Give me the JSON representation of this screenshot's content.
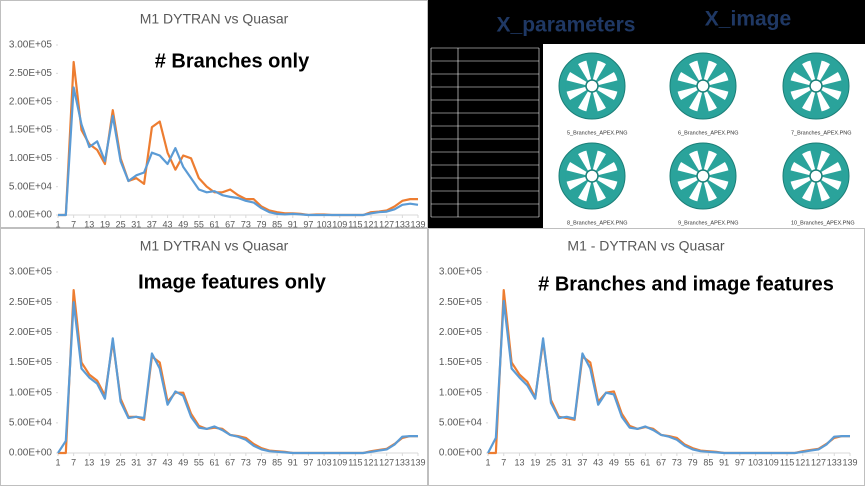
{
  "chart_data": [
    {
      "type": "line",
      "title": "M1 DYTRAN vs Quasar",
      "annotation": "# Branches only",
      "x": [
        1,
        4,
        7,
        10,
        13,
        16,
        19,
        22,
        25,
        28,
        31,
        34,
        37,
        40,
        43,
        46,
        49,
        52,
        55,
        58,
        61,
        64,
        67,
        70,
        73,
        76,
        79,
        82,
        85,
        88,
        91,
        94,
        97,
        100,
        103,
        106,
        109,
        112,
        115,
        118,
        121,
        124,
        127,
        130,
        133,
        136,
        139
      ],
      "xlim": [
        1,
        139
      ],
      "xticks": [
        1,
        7,
        13,
        19,
        25,
        31,
        37,
        43,
        49,
        55,
        61,
        67,
        73,
        79,
        85,
        91,
        97,
        103,
        109,
        115,
        121,
        127,
        133,
        139
      ],
      "ylim": [
        0,
        300000
      ],
      "yticks": [
        {
          "value": 0,
          "label": "0.00E+00"
        },
        {
          "value": 50000,
          "label": "5.00E+04"
        },
        {
          "value": 100000,
          "label": "1.00E+05"
        },
        {
          "value": 150000,
          "label": "1.50E+05"
        },
        {
          "value": 200000,
          "label": "2.00E+05"
        },
        {
          "value": 250000,
          "label": "2.50E+05"
        },
        {
          "value": 300000,
          "label": "3.00E+05"
        }
      ],
      "series": [
        {
          "color": "#ed7d31",
          "values": [
            0,
            0,
            270000,
            150000,
            125000,
            115000,
            90000,
            185000,
            100000,
            60000,
            65000,
            55000,
            155000,
            165000,
            110000,
            80000,
            105000,
            100000,
            65000,
            50000,
            40000,
            40000,
            45000,
            35000,
            28000,
            28000,
            15000,
            8000,
            5000,
            3000,
            3000,
            2000,
            0,
            1000,
            1000,
            0,
            0,
            0,
            0,
            0,
            5000,
            6000,
            8000,
            15000,
            25000,
            28000,
            28000
          ]
        },
        {
          "color": "#5b9bd5",
          "values": [
            0,
            0,
            225000,
            160000,
            120000,
            130000,
            95000,
            175000,
            95000,
            60000,
            70000,
            75000,
            110000,
            105000,
            90000,
            118000,
            85000,
            65000,
            45000,
            40000,
            42000,
            35000,
            32000,
            30000,
            25000,
            22000,
            12000,
            5000,
            2000,
            1000,
            2000,
            1000,
            0,
            0,
            0,
            0,
            0,
            0,
            0,
            0,
            3000,
            5000,
            6000,
            10000,
            18000,
            20000,
            18000
          ]
        }
      ]
    },
    {
      "type": "line",
      "title": "M1 DYTRAN vs Quasar",
      "annotation": "Image features only",
      "x": [
        1,
        4,
        7,
        10,
        13,
        16,
        19,
        22,
        25,
        28,
        31,
        34,
        37,
        40,
        43,
        46,
        49,
        52,
        55,
        58,
        61,
        64,
        67,
        70,
        73,
        76,
        79,
        82,
        85,
        88,
        91,
        94,
        97,
        100,
        103,
        106,
        109,
        112,
        115,
        118,
        121,
        124,
        127,
        130,
        133,
        136,
        139
      ],
      "xlim": [
        1,
        139
      ],
      "xticks": [
        1,
        7,
        13,
        19,
        25,
        31,
        37,
        43,
        49,
        55,
        61,
        67,
        73,
        79,
        85,
        91,
        97,
        103,
        109,
        115,
        121,
        127,
        133,
        139
      ],
      "ylim": [
        0,
        300000
      ],
      "yticks": [
        {
          "value": 0,
          "label": "0.00E+00"
        },
        {
          "value": 50000,
          "label": "5.00E+04"
        },
        {
          "value": 100000,
          "label": "1.00E+05"
        },
        {
          "value": 150000,
          "label": "1.50E+05"
        },
        {
          "value": 200000,
          "label": "2.00E+05"
        },
        {
          "value": 250000,
          "label": "2.50E+05"
        },
        {
          "value": 300000,
          "label": "3.00E+05"
        }
      ],
      "series": [
        {
          "color": "#ed7d31",
          "values": [
            0,
            0,
            270000,
            150000,
            130000,
            120000,
            95000,
            185000,
            90000,
            60000,
            60000,
            55000,
            160000,
            150000,
            85000,
            100000,
            100000,
            65000,
            45000,
            40000,
            42000,
            40000,
            30000,
            28000,
            25000,
            15000,
            8000,
            4000,
            3000,
            2000,
            0,
            0,
            0,
            0,
            0,
            0,
            0,
            0,
            0,
            0,
            3000,
            5000,
            7000,
            15000,
            25000,
            28000,
            28000
          ]
        },
        {
          "color": "#5b9bd5",
          "values": [
            0,
            20000,
            250000,
            140000,
            125000,
            115000,
            90000,
            190000,
            85000,
            58000,
            60000,
            58000,
            165000,
            140000,
            80000,
            102000,
            95000,
            60000,
            42000,
            40000,
            44000,
            38000,
            30000,
            27000,
            22000,
            12000,
            6000,
            3000,
            2000,
            1000,
            0,
            0,
            0,
            0,
            0,
            0,
            0,
            0,
            0,
            0,
            2000,
            4000,
            6000,
            14000,
            27000,
            28000,
            28000
          ]
        }
      ]
    },
    {
      "type": "line",
      "title": "M1 - DYTRAN vs Quasar",
      "annotation": "# Branches and image features",
      "x": [
        1,
        4,
        7,
        10,
        13,
        16,
        19,
        22,
        25,
        28,
        31,
        34,
        37,
        40,
        43,
        46,
        49,
        52,
        55,
        58,
        61,
        64,
        67,
        70,
        73,
        76,
        79,
        82,
        85,
        88,
        91,
        94,
        97,
        100,
        103,
        106,
        109,
        112,
        115,
        118,
        121,
        124,
        127,
        130,
        133,
        136,
        139
      ],
      "xlim": [
        1,
        139
      ],
      "xticks": [
        1,
        7,
        13,
        19,
        25,
        31,
        37,
        43,
        49,
        55,
        61,
        67,
        73,
        79,
        85,
        91,
        97,
        103,
        109,
        115,
        121,
        127,
        133,
        139
      ],
      "ylim": [
        0,
        300000
      ],
      "yticks": [
        {
          "value": 0,
          "label": "0.00E+00"
        },
        {
          "value": 50000,
          "label": "5.00E+04"
        },
        {
          "value": 100000,
          "label": "1.00E+05"
        },
        {
          "value": 150000,
          "label": "1.50E+05"
        },
        {
          "value": 200000,
          "label": "2.00E+05"
        },
        {
          "value": 250000,
          "label": "2.50E+05"
        },
        {
          "value": 300000,
          "label": "3.00E+05"
        }
      ],
      "series": [
        {
          "color": "#ed7d31",
          "values": [
            0,
            0,
            270000,
            150000,
            130000,
            118000,
            92000,
            185000,
            88000,
            60000,
            58000,
            55000,
            160000,
            150000,
            85000,
            100000,
            102000,
            65000,
            45000,
            40000,
            43000,
            40000,
            30000,
            28000,
            25000,
            14000,
            8000,
            4000,
            3000,
            2000,
            0,
            0,
            0,
            0,
            0,
            0,
            0,
            0,
            0,
            0,
            3000,
            5000,
            7000,
            15000,
            25000,
            28000,
            28000
          ]
        },
        {
          "color": "#5b9bd5",
          "values": [
            0,
            25000,
            252000,
            140000,
            125000,
            112000,
            90000,
            190000,
            83000,
            58000,
            60000,
            57000,
            165000,
            140000,
            80000,
            100000,
            97000,
            60000,
            42000,
            40000,
            44000,
            38000,
            30000,
            27000,
            22000,
            12000,
            6000,
            3000,
            2000,
            1000,
            0,
            0,
            0,
            0,
            0,
            0,
            0,
            0,
            0,
            0,
            2000,
            4000,
            6000,
            14000,
            27000,
            28000,
            28000
          ]
        }
      ]
    }
  ],
  "image_panel": {
    "headings": [
      "X_parameters",
      "X_image"
    ],
    "captions": [
      "5_Branches_APEX.PNG",
      "6_Branches_APEX.PNG",
      "7_Branches_APEX.PNG",
      "8_Branches_APEX.PNG",
      "9_Branches_APEX.PNG",
      "10_Branches_APEX.PNG"
    ]
  }
}
